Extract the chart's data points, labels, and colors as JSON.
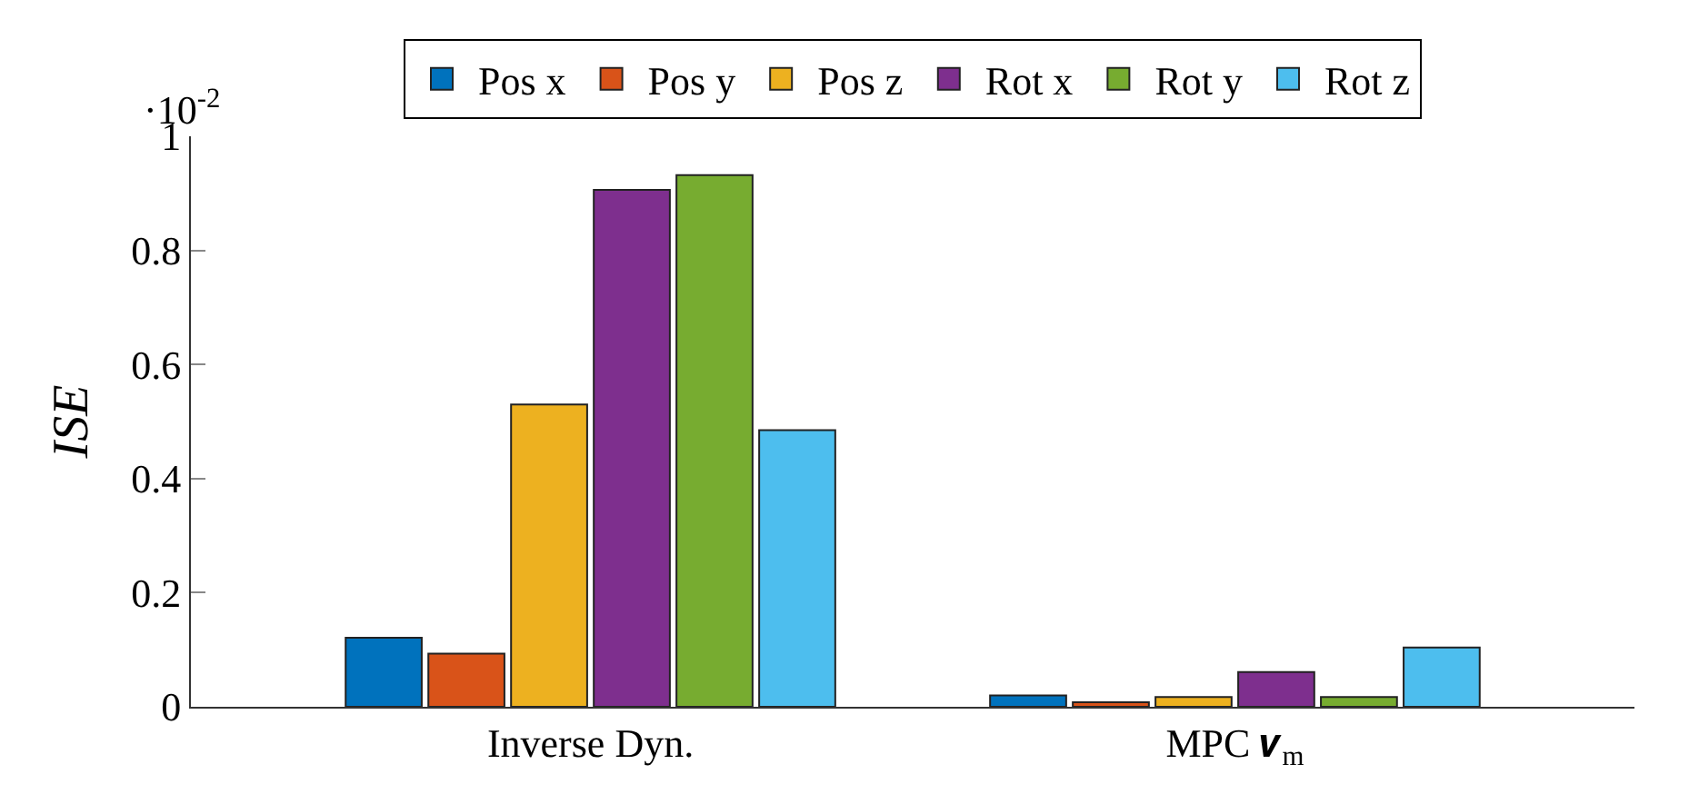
{
  "chart_data": {
    "type": "bar",
    "ylabel": "ISE",
    "categories": [
      "Inverse Dyn.",
      "MPC 𝒗$_{m}$"
    ],
    "series": [
      {
        "name": "Pos x",
        "color": "#0072bd",
        "values": [
          0.121,
          0.02
        ]
      },
      {
        "name": "Pos y",
        "color": "#d95319",
        "values": [
          0.093,
          0.008
        ]
      },
      {
        "name": "Pos z",
        "color": "#edb120",
        "values": [
          0.53,
          0.017
        ]
      },
      {
        "name": "Rot x",
        "color": "#7e2f8e",
        "values": [
          0.906,
          0.061
        ]
      },
      {
        "name": "Rot y",
        "color": "#77ac30",
        "values": [
          0.932,
          0.017
        ]
      },
      {
        "name": "Rot z",
        "color": "#4dbeee",
        "values": [
          0.485,
          0.104
        ]
      }
    ],
    "ylim": [
      0,
      1
    ],
    "yticks": [
      0,
      0.2,
      0.4,
      0.6,
      0.8,
      1
    ],
    "annotations": [
      "·10$^{-2}$"
    ],
    "legend": "top"
  }
}
